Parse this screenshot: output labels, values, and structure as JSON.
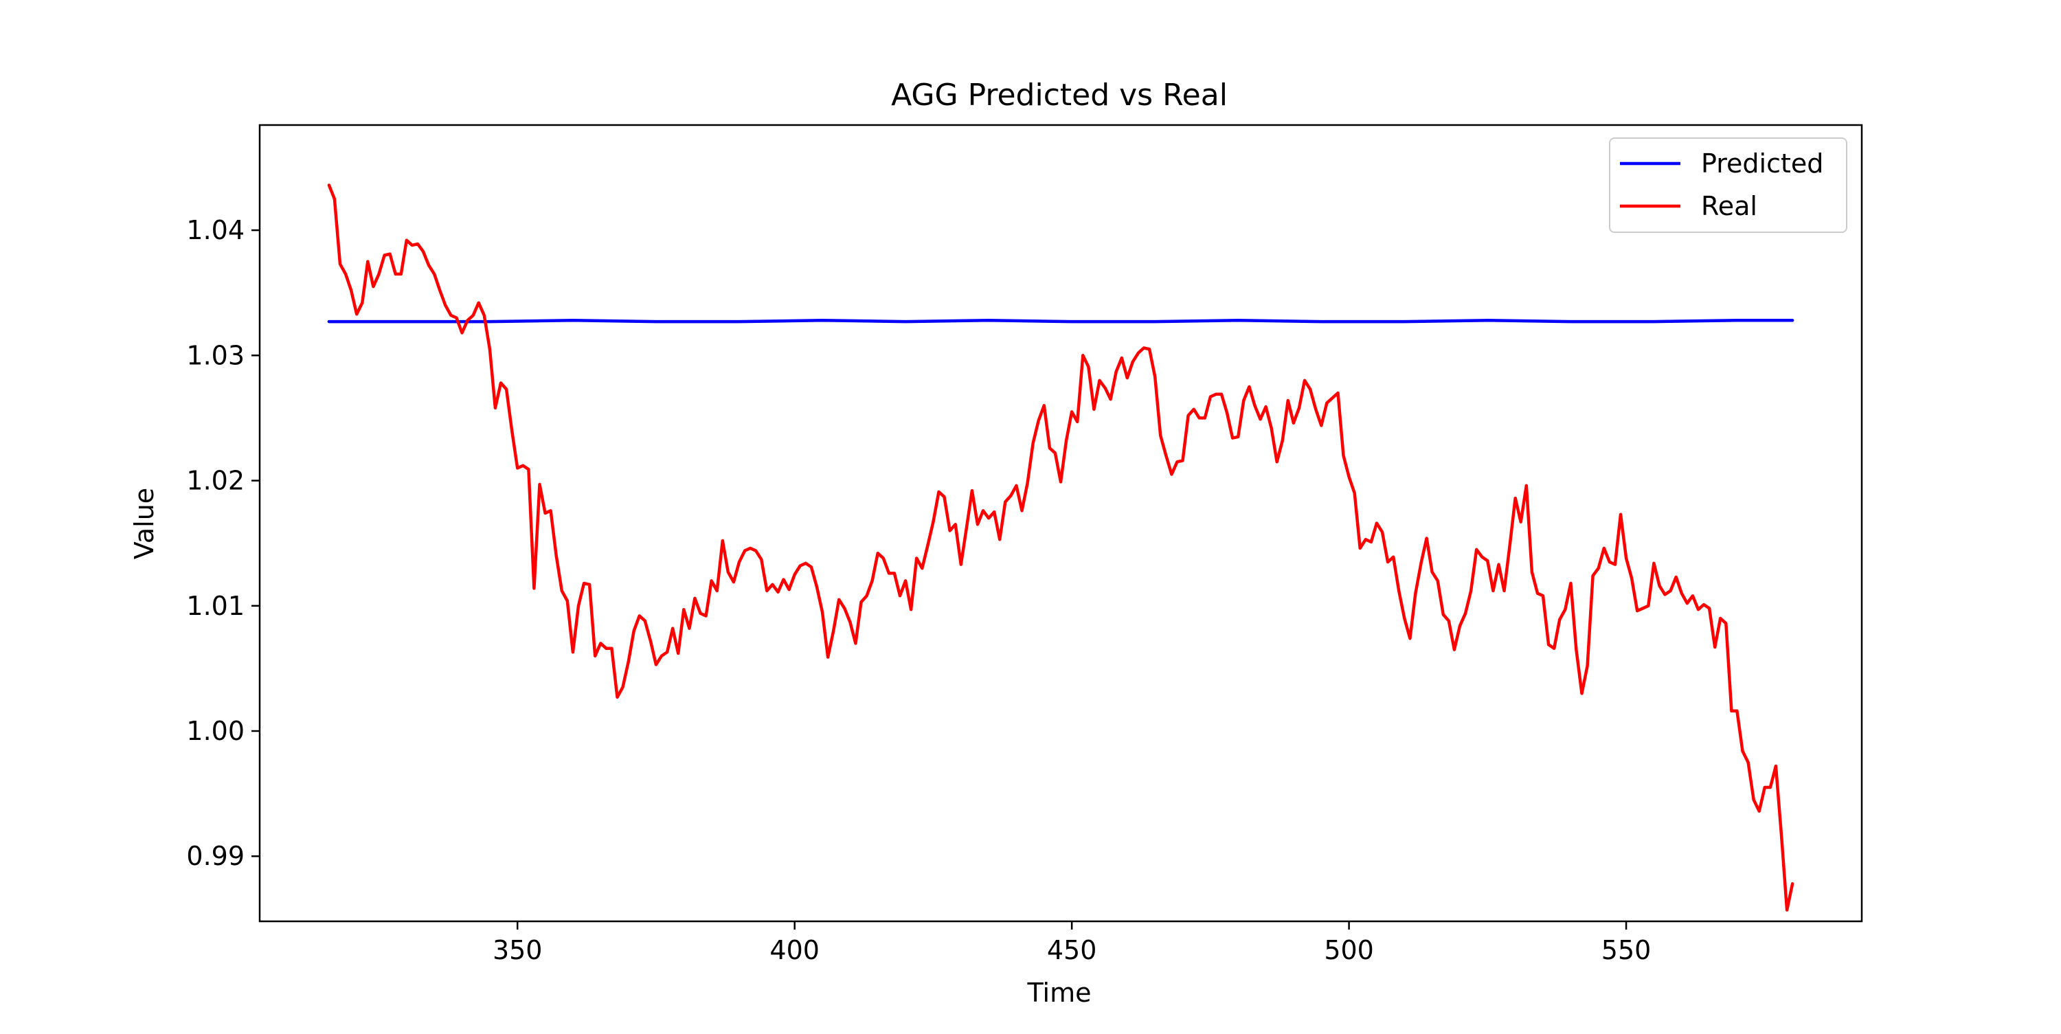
{
  "chart_data": {
    "type": "line",
    "title": "AGG Predicted vs Real",
    "xlabel": "Time",
    "ylabel": "Value",
    "xlim": [
      303.5,
      592.5
    ],
    "ylim": [
      0.9848,
      1.0484
    ],
    "x_ticks": [
      350,
      400,
      450,
      500,
      550
    ],
    "y_ticks": [
      0.99,
      1.0,
      1.01,
      1.02,
      1.03,
      1.04
    ],
    "x_tick_labels": [
      "350",
      "400",
      "450",
      "500",
      "550"
    ],
    "y_tick_labels": [
      "0.99",
      "1.00",
      "1.01",
      "1.02",
      "1.03",
      "1.04"
    ],
    "legend_position": "top-right",
    "grid": false,
    "series": [
      {
        "name": "Predicted",
        "color": "#0000ff",
        "x_start": 316,
        "x_end": 580,
        "values": [
          [
            316,
            1.0327
          ],
          [
            330,
            1.0327
          ],
          [
            345,
            1.0327
          ],
          [
            360,
            1.0328
          ],
          [
            375,
            1.0327
          ],
          [
            390,
            1.0327
          ],
          [
            405,
            1.0328
          ],
          [
            420,
            1.0327
          ],
          [
            435,
            1.0328
          ],
          [
            450,
            1.0327
          ],
          [
            465,
            1.0327
          ],
          [
            480,
            1.0328
          ],
          [
            495,
            1.0327
          ],
          [
            510,
            1.0327
          ],
          [
            525,
            1.0328
          ],
          [
            540,
            1.0327
          ],
          [
            555,
            1.0327
          ],
          [
            570,
            1.0328
          ],
          [
            580,
            1.0328
          ]
        ]
      },
      {
        "name": "Real",
        "color": "#ff0000",
        "values": [
          [
            316,
            1.0436
          ],
          [
            317,
            1.0425
          ],
          [
            318,
            1.0373
          ],
          [
            319,
            1.0365
          ],
          [
            320,
            1.0352
          ],
          [
            321,
            1.0333
          ],
          [
            322,
            1.0342
          ],
          [
            323,
            1.0375
          ],
          [
            324,
            1.0355
          ],
          [
            325,
            1.0365
          ],
          [
            326,
            1.038
          ],
          [
            327,
            1.0381
          ],
          [
            328,
            1.0365
          ],
          [
            329,
            1.0365
          ],
          [
            330,
            1.0392
          ],
          [
            331,
            1.0388
          ],
          [
            332,
            1.0389
          ],
          [
            333,
            1.0383
          ],
          [
            334,
            1.0372
          ],
          [
            335,
            1.0365
          ],
          [
            336,
            1.0352
          ],
          [
            337,
            1.034
          ],
          [
            338,
            1.0332
          ],
          [
            339,
            1.033
          ],
          [
            340,
            1.0318
          ],
          [
            341,
            1.0328
          ],
          [
            342,
            1.0332
          ],
          [
            343,
            1.0342
          ],
          [
            344,
            1.0332
          ],
          [
            345,
            1.0305
          ],
          [
            346,
            1.0258
          ],
          [
            347,
            1.0278
          ],
          [
            348,
            1.0273
          ],
          [
            349,
            1.024
          ],
          [
            350,
            1.021
          ],
          [
            351,
            1.0212
          ],
          [
            352,
            1.0209
          ],
          [
            353,
            1.0114
          ],
          [
            354,
            1.0197
          ],
          [
            355,
            1.0174
          ],
          [
            356,
            1.0176
          ],
          [
            357,
            1.014
          ],
          [
            358,
            1.0112
          ],
          [
            359,
            1.0104
          ],
          [
            360,
            1.0063
          ],
          [
            361,
            1.01
          ],
          [
            362,
            1.0118
          ],
          [
            363,
            1.0117
          ],
          [
            364,
            1.006
          ],
          [
            365,
            1.007
          ],
          [
            366,
            1.0066
          ],
          [
            367,
            1.0066
          ],
          [
            368,
            1.0027
          ],
          [
            369,
            1.0035
          ],
          [
            370,
            1.0055
          ],
          [
            371,
            1.008
          ],
          [
            372,
            1.0092
          ],
          [
            373,
            1.0088
          ],
          [
            374,
            1.0072
          ],
          [
            375,
            1.0053
          ],
          [
            376,
            1.006
          ],
          [
            377,
            1.0063
          ],
          [
            378,
            1.0082
          ],
          [
            379,
            1.0062
          ],
          [
            380,
            1.0097
          ],
          [
            381,
            1.0082
          ],
          [
            382,
            1.0106
          ],
          [
            383,
            1.0094
          ],
          [
            384,
            1.0092
          ],
          [
            385,
            1.012
          ],
          [
            386,
            1.0112
          ],
          [
            387,
            1.0152
          ],
          [
            388,
            1.0127
          ],
          [
            389,
            1.0119
          ],
          [
            390,
            1.0135
          ],
          [
            391,
            1.0144
          ],
          [
            392,
            1.0146
          ],
          [
            393,
            1.0144
          ],
          [
            394,
            1.0137
          ],
          [
            395,
            1.0112
          ],
          [
            396,
            1.0117
          ],
          [
            397,
            1.0111
          ],
          [
            398,
            1.0121
          ],
          [
            399,
            1.0113
          ],
          [
            400,
            1.0125
          ],
          [
            401,
            1.0132
          ],
          [
            402,
            1.0134
          ],
          [
            403,
            1.0131
          ],
          [
            404,
            1.0115
          ],
          [
            405,
            1.0095
          ],
          [
            406,
            1.0059
          ],
          [
            407,
            1.008
          ],
          [
            408,
            1.0105
          ],
          [
            409,
            1.0098
          ],
          [
            410,
            1.0087
          ],
          [
            411,
            1.007
          ],
          [
            412,
            1.0103
          ],
          [
            413,
            1.0108
          ],
          [
            414,
            1.012
          ],
          [
            415,
            1.0142
          ],
          [
            416,
            1.0138
          ],
          [
            417,
            1.0126
          ],
          [
            418,
            1.0126
          ],
          [
            419,
            1.0108
          ],
          [
            420,
            1.012
          ],
          [
            421,
            1.0097
          ],
          [
            422,
            1.0138
          ],
          [
            423,
            1.013
          ],
          [
            424,
            1.0148
          ],
          [
            425,
            1.0167
          ],
          [
            426,
            1.0191
          ],
          [
            427,
            1.0187
          ],
          [
            428,
            1.016
          ],
          [
            429,
            1.0165
          ],
          [
            430,
            1.0133
          ],
          [
            431,
            1.0162
          ],
          [
            432,
            1.0192
          ],
          [
            433,
            1.0165
          ],
          [
            434,
            1.0176
          ],
          [
            435,
            1.017
          ],
          [
            436,
            1.0175
          ],
          [
            437,
            1.0153
          ],
          [
            438,
            1.0183
          ],
          [
            439,
            1.0188
          ],
          [
            440,
            1.0196
          ],
          [
            441,
            1.0176
          ],
          [
            442,
            1.0198
          ],
          [
            443,
            1.023
          ],
          [
            444,
            1.0248
          ],
          [
            445,
            1.026
          ],
          [
            446,
            1.0226
          ],
          [
            447,
            1.0222
          ],
          [
            448,
            1.0199
          ],
          [
            449,
            1.0232
          ],
          [
            450,
            1.0255
          ],
          [
            451,
            1.0247
          ],
          [
            452,
            1.03
          ],
          [
            453,
            1.0291
          ],
          [
            454,
            1.0257
          ],
          [
            455,
            1.028
          ],
          [
            456,
            1.0274
          ],
          [
            457,
            1.0265
          ],
          [
            458,
            1.0287
          ],
          [
            459,
            1.0298
          ],
          [
            460,
            1.0282
          ],
          [
            461,
            1.0295
          ],
          [
            462,
            1.0302
          ],
          [
            463,
            1.0306
          ],
          [
            464,
            1.0305
          ],
          [
            465,
            1.0283
          ],
          [
            466,
            1.0236
          ],
          [
            467,
            1.022
          ],
          [
            468,
            1.0205
          ],
          [
            469,
            1.0215
          ],
          [
            470,
            1.0216
          ],
          [
            471,
            1.0252
          ],
          [
            472,
            1.0257
          ],
          [
            473,
            1.025
          ],
          [
            474,
            1.025
          ],
          [
            475,
            1.0267
          ],
          [
            476,
            1.0269
          ],
          [
            477,
            1.0269
          ],
          [
            478,
            1.0254
          ],
          [
            479,
            1.0234
          ],
          [
            480,
            1.0235
          ],
          [
            481,
            1.0264
          ],
          [
            482,
            1.0275
          ],
          [
            483,
            1.026
          ],
          [
            484,
            1.0249
          ],
          [
            485,
            1.0259
          ],
          [
            486,
            1.0242
          ],
          [
            487,
            1.0215
          ],
          [
            488,
            1.0232
          ],
          [
            489,
            1.0264
          ],
          [
            490,
            1.0246
          ],
          [
            491,
            1.0258
          ],
          [
            492,
            1.028
          ],
          [
            493,
            1.0273
          ],
          [
            494,
            1.0257
          ],
          [
            495,
            1.0244
          ],
          [
            496,
            1.0262
          ],
          [
            497,
            1.0266
          ],
          [
            498,
            1.027
          ],
          [
            499,
            1.022
          ],
          [
            500,
            1.0203
          ],
          [
            501,
            1.019
          ],
          [
            502,
            1.0146
          ],
          [
            503,
            1.0153
          ],
          [
            504,
            1.0151
          ],
          [
            505,
            1.0166
          ],
          [
            506,
            1.0159
          ],
          [
            507,
            1.0135
          ],
          [
            508,
            1.0139
          ],
          [
            509,
            1.0112
          ],
          [
            510,
            1.009
          ],
          [
            511,
            1.0074
          ],
          [
            512,
            1.011
          ],
          [
            513,
            1.0134
          ],
          [
            514,
            1.0154
          ],
          [
            515,
            1.0127
          ],
          [
            516,
            1.012
          ],
          [
            517,
            1.0093
          ],
          [
            518,
            1.0088
          ],
          [
            519,
            1.0065
          ],
          [
            520,
            1.0084
          ],
          [
            521,
            1.0094
          ],
          [
            522,
            1.0112
          ],
          [
            523,
            1.0145
          ],
          [
            524,
            1.0139
          ],
          [
            525,
            1.0136
          ],
          [
            526,
            1.0112
          ],
          [
            527,
            1.0133
          ],
          [
            528,
            1.0112
          ],
          [
            529,
            1.0148
          ],
          [
            530,
            1.0186
          ],
          [
            531,
            1.0167
          ],
          [
            532,
            1.0196
          ],
          [
            533,
            1.0127
          ],
          [
            534,
            1.011
          ],
          [
            535,
            1.0108
          ],
          [
            536,
            1.0069
          ],
          [
            537,
            1.0066
          ],
          [
            538,
            1.0089
          ],
          [
            539,
            1.0097
          ],
          [
            540,
            1.0118
          ],
          [
            541,
            1.0065
          ],
          [
            542,
            1.003
          ],
          [
            543,
            1.0052
          ],
          [
            544,
            1.0124
          ],
          [
            545,
            1.013
          ],
          [
            546,
            1.0146
          ],
          [
            547,
            1.0135
          ],
          [
            548,
            1.0133
          ],
          [
            549,
            1.0173
          ],
          [
            550,
            1.0138
          ],
          [
            551,
            1.0122
          ],
          [
            552,
            1.0096
          ],
          [
            553,
            1.0098
          ],
          [
            554,
            1.01
          ],
          [
            555,
            1.0134
          ],
          [
            556,
            1.0116
          ],
          [
            557,
            1.0109
          ],
          [
            558,
            1.0112
          ],
          [
            559,
            1.0123
          ],
          [
            560,
            1.011
          ],
          [
            561,
            1.0102
          ],
          [
            562,
            1.0108
          ],
          [
            563,
            1.0097
          ],
          [
            564,
            1.0101
          ],
          [
            565,
            1.0098
          ],
          [
            566,
            1.0067
          ],
          [
            567,
            1.009
          ],
          [
            568,
            1.0086
          ],
          [
            569,
            1.0016
          ],
          [
            570,
            1.0016
          ],
          [
            571,
            0.9984
          ],
          [
            572,
            0.9975
          ],
          [
            573,
            0.9945
          ],
          [
            574,
            0.9936
          ],
          [
            575,
            0.9955
          ],
          [
            576,
            0.9955
          ],
          [
            577,
            0.9972
          ],
          [
            578,
            0.9917
          ],
          [
            579,
            0.9857
          ],
          [
            580,
            0.9878
          ]
        ]
      }
    ]
  }
}
